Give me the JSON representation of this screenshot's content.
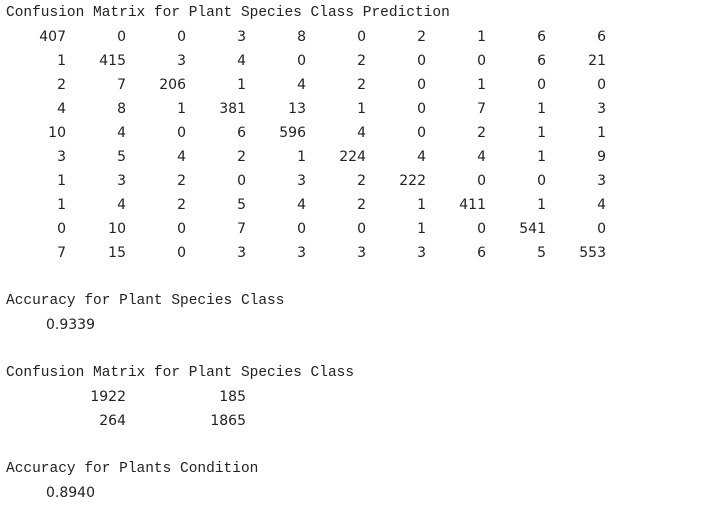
{
  "section1": {
    "title": "Confusion Matrix for Plant Species Class Prediction",
    "matrix": [
      [
        407,
        0,
        0,
        3,
        8,
        0,
        2,
        1,
        6,
        6
      ],
      [
        1,
        415,
        3,
        4,
        0,
        2,
        0,
        0,
        6,
        21
      ],
      [
        2,
        7,
        206,
        1,
        4,
        2,
        0,
        1,
        0,
        0
      ],
      [
        4,
        8,
        1,
        381,
        13,
        1,
        0,
        7,
        1,
        3
      ],
      [
        10,
        4,
        0,
        6,
        596,
        4,
        0,
        2,
        1,
        1
      ],
      [
        3,
        5,
        4,
        2,
        1,
        224,
        4,
        4,
        1,
        9
      ],
      [
        1,
        3,
        2,
        0,
        3,
        2,
        222,
        0,
        0,
        3
      ],
      [
        1,
        4,
        2,
        5,
        4,
        2,
        1,
        411,
        1,
        4
      ],
      [
        0,
        10,
        0,
        7,
        0,
        0,
        1,
        0,
        541,
        0
      ],
      [
        7,
        15,
        0,
        3,
        3,
        3,
        3,
        6,
        5,
        553
      ]
    ]
  },
  "section2": {
    "title": "Accuracy for Plant Species Class",
    "value": "0.9339"
  },
  "section3": {
    "title": "Confusion Matrix for Plant Species Class",
    "matrix": [
      [
        1922,
        185
      ],
      [
        264,
        1865
      ]
    ]
  },
  "section4": {
    "title": "Accuracy for Plants Condition",
    "value": "0.8940"
  }
}
